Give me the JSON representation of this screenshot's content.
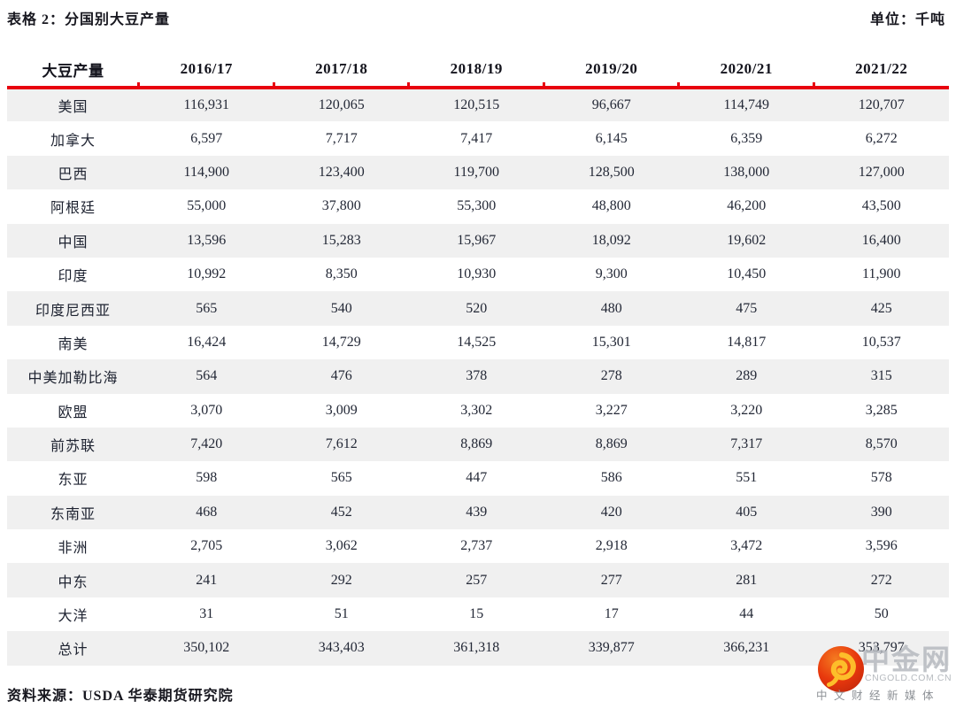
{
  "header": {
    "title": "表格 2：分国别大豆产量",
    "unit": "单位：千吨"
  },
  "chart_data": {
    "type": "table",
    "title": "分国别大豆产量",
    "unit": "千吨",
    "columns": [
      "大豆产量",
      "2016/17",
      "2017/18",
      "2018/19",
      "2019/20",
      "2020/21",
      "2021/22"
    ],
    "rows": [
      {
        "label": "美国",
        "values": [
          "116,931",
          "120,065",
          "120,515",
          "96,667",
          "114,749",
          "120,707"
        ]
      },
      {
        "label": "加拿大",
        "values": [
          "6,597",
          "7,717",
          "7,417",
          "6,145",
          "6,359",
          "6,272"
        ]
      },
      {
        "label": "巴西",
        "values": [
          "114,900",
          "123,400",
          "119,700",
          "128,500",
          "138,000",
          "127,000"
        ]
      },
      {
        "label": "阿根廷",
        "values": [
          "55,000",
          "37,800",
          "55,300",
          "48,800",
          "46,200",
          "43,500"
        ]
      },
      {
        "label": "中国",
        "values": [
          "13,596",
          "15,283",
          "15,967",
          "18,092",
          "19,602",
          "16,400"
        ]
      },
      {
        "label": "印度",
        "values": [
          "10,992",
          "8,350",
          "10,930",
          "9,300",
          "10,450",
          "11,900"
        ]
      },
      {
        "label": "印度尼西亚",
        "values": [
          "565",
          "540",
          "520",
          "480",
          "475",
          "425"
        ]
      },
      {
        "label": "南美",
        "values": [
          "16,424",
          "14,729",
          "14,525",
          "15,301",
          "14,817",
          "10,537"
        ]
      },
      {
        "label": "中美加勒比海",
        "values": [
          "564",
          "476",
          "378",
          "278",
          "289",
          "315"
        ]
      },
      {
        "label": "欧盟",
        "values": [
          "3,070",
          "3,009",
          "3,302",
          "3,227",
          "3,220",
          "3,285"
        ]
      },
      {
        "label": "前苏联",
        "values": [
          "7,420",
          "7,612",
          "8,869",
          "8,869",
          "7,317",
          "8,570"
        ]
      },
      {
        "label": "东亚",
        "values": [
          "598",
          "565",
          "447",
          "586",
          "551",
          "578"
        ]
      },
      {
        "label": "东南亚",
        "values": [
          "468",
          "452",
          "439",
          "420",
          "405",
          "390"
        ]
      },
      {
        "label": "非洲",
        "values": [
          "2,705",
          "3,062",
          "2,737",
          "2,918",
          "3,472",
          "3,596"
        ]
      },
      {
        "label": "中东",
        "values": [
          "241",
          "292",
          "257",
          "277",
          "281",
          "272"
        ]
      },
      {
        "label": "大洋",
        "values": [
          "31",
          "51",
          "15",
          "17",
          "44",
          "50"
        ]
      },
      {
        "label": "总计",
        "values": [
          "350,102",
          "343,403",
          "361,318",
          "339,877",
          "366,231",
          "353,797"
        ]
      }
    ],
    "layout": {
      "striped": true,
      "stripe_color": "#f0f0f0",
      "accent_color": "#e8000f",
      "grid": false
    }
  },
  "footer": {
    "source": "资料来源：USDA 华泰期货研究院"
  },
  "logo": {
    "brand": "中金网",
    "domain": "CNGOLD.COM.CN",
    "tagline": "中文财经新媒体",
    "circle_color": "#e8380d",
    "swirl_color": "#fdbe2a",
    "text_color": "#b2b6bc"
  }
}
